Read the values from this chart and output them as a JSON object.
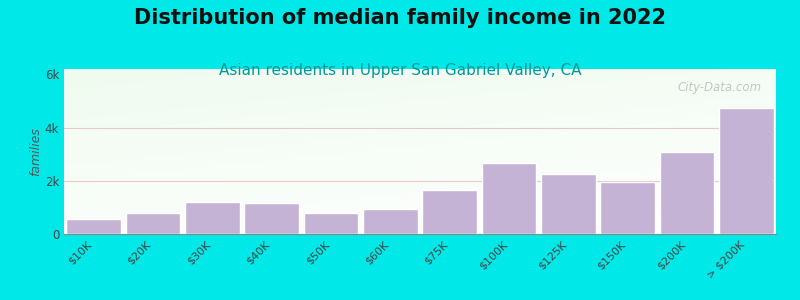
{
  "title": "Distribution of median family income in 2022",
  "subtitle": "Asian residents in Upper San Gabriel Valley, CA",
  "watermark": "City-Data.com",
  "categories": [
    "$10K",
    "$20K",
    "$30K",
    "$40K",
    "$50K",
    "$60K",
    "$75K",
    "$100K",
    "$125K",
    "$150K",
    "$200K",
    "> $200K"
  ],
  "values": [
    580,
    800,
    1200,
    1150,
    800,
    950,
    1650,
    2650,
    2250,
    1950,
    3100,
    4750
  ],
  "bar_color": "#c5b3d5",
  "bar_edge_color": "#ffffff",
  "outer_background": "#00e8e8",
  "ylabel": "families",
  "ylim": [
    0,
    6200
  ],
  "yticks": [
    0,
    2000,
    4000,
    6000
  ],
  "ytick_labels": [
    "0",
    "2k",
    "4k",
    "6k"
  ],
  "title_fontsize": 15,
  "subtitle_fontsize": 11,
  "subtitle_color": "#009999",
  "watermark_color": "#aaaaaa",
  "grid_color": "#e8c8c8",
  "title_color": "#111111",
  "ylabel_color": "#555555"
}
